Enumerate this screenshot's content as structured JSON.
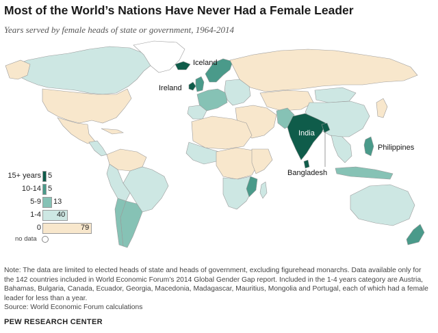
{
  "title": "Most of the World’s Nations Have Never Had a Female Leader",
  "subtitle": "Years served by female heads of state or government, 1964-2014",
  "colors": {
    "y15plus": "#0f5c4a",
    "y10_14": "#4a9a8a",
    "y5_9": "#86c2b5",
    "y1_4": "#cde7e3",
    "y0": "#f8e7cc",
    "nodata": "#ffffff",
    "ocean": "#ffffff",
    "border": "#9a9a9a"
  },
  "legend": {
    "items": [
      {
        "label": "15+ years",
        "count": "5",
        "color": "#0f5c4a"
      },
      {
        "label": "10-14",
        "count": "5",
        "color": "#4a9a8a"
      },
      {
        "label": "5-9",
        "count": "13",
        "color": "#86c2b5"
      },
      {
        "label": "1-4",
        "count": "40",
        "color": "#cde7e3"
      },
      {
        "label": "0",
        "count": "79",
        "color": "#f8e7cc"
      }
    ],
    "nodata_label": "no data"
  },
  "labels": {
    "iceland": "Iceland",
    "ireland": "Ireland",
    "india": "India",
    "bangladesh": "Bangladesh",
    "philippines": "Philippines"
  },
  "note_lines": [
    "Note: The data are limited to elected heads of state and heads of government, excluding figurehead monarchs. Data available only for the 142 countries included in World Economic Forum’s 2014 Global Gender Gap report. Included in the 1-4 years category are Austria, Bahamas, Bulgaria, Canada, Ecuador, Georgia, Macedonia, Madagascar, Mauritius, Mongolia and Portugal, each of which had a female leader for less than a year."
  ],
  "source": "Source: World Economic Forum calculations",
  "brand": "PEW RESEARCH CENTER"
}
